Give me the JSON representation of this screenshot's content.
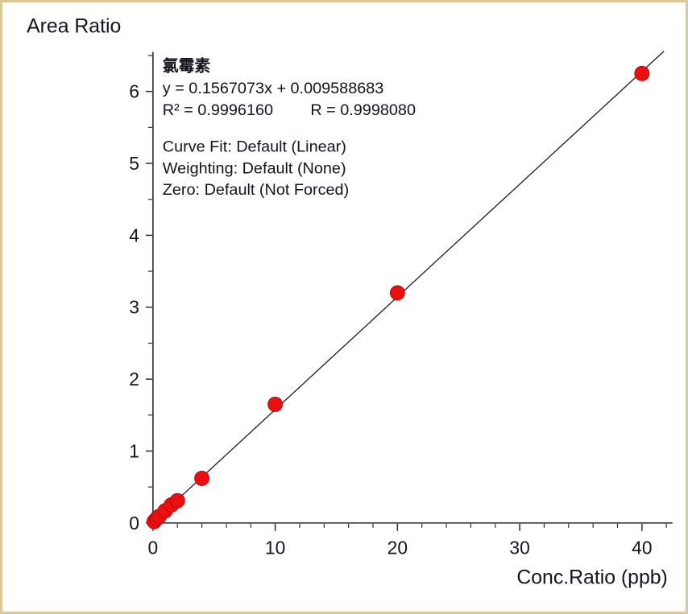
{
  "frame": {
    "border_color": "#dbc99b",
    "background_color": "#ffffff"
  },
  "chart_data": {
    "type": "scatter",
    "title": "Area Ratio",
    "xlabel": "Conc.Ratio (ppb)",
    "ylabel": "Area Ratio",
    "xlim": [
      0,
      42.5
    ],
    "ylim": [
      0,
      6.55
    ],
    "x_major_ticks": [
      0,
      10,
      20,
      30,
      40
    ],
    "x_minor_step": 2,
    "y_major_ticks": [
      0,
      1,
      2,
      3,
      4,
      5,
      6
    ],
    "y_minor_step": 0.5,
    "grid": false,
    "legend": "none",
    "points": [
      [
        0.1,
        0.02
      ],
      [
        0.3,
        0.06
      ],
      [
        0.5,
        0.09
      ],
      [
        1,
        0.17
      ],
      [
        1.5,
        0.25
      ],
      [
        2,
        0.31
      ],
      [
        4,
        0.62
      ],
      [
        10,
        1.65
      ],
      [
        20,
        3.2
      ],
      [
        40,
        6.25
      ]
    ],
    "fit_line": {
      "slope": 0.1567073,
      "intercept": 0.009588683,
      "x_start": 0,
      "x_end": 41.8,
      "color": "#1a1a1a"
    },
    "marker_color": "#ea1010",
    "marker_edge_color": "#c00000",
    "axis_color": "#2b2b2b",
    "annotation": {
      "compound": "氯霉素",
      "equation": "y = 0.1567073x + 0.009588683",
      "r_squared": "R² = 0.9996160",
      "r_value": "R = 0.9998080",
      "curve_fit": "Curve Fit: Default (Linear)",
      "weighting": "Weighting: Default (None)",
      "zero": "Zero: Default (Not Forced)"
    }
  }
}
